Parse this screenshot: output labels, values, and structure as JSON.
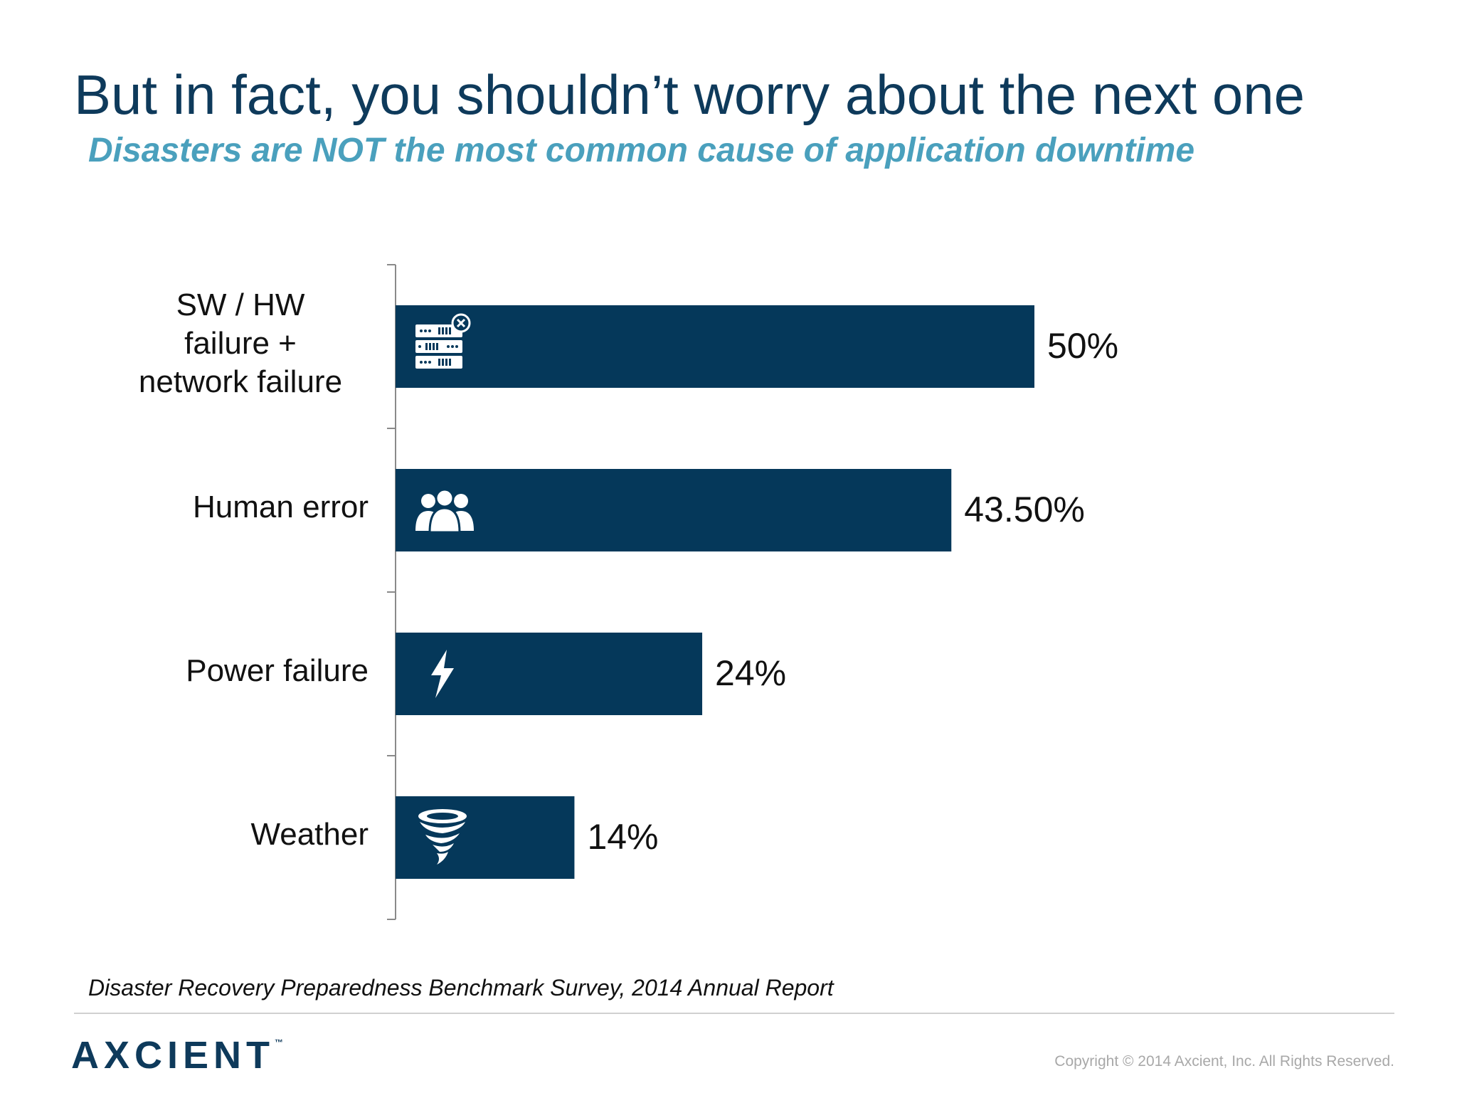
{
  "slide": {
    "title": "But in fact, you shouldn’t worry about the next one",
    "subtitle": "Disasters are NOT the most common cause of application downtime",
    "source": "Disaster Recovery Preparedness Benchmark Survey, 2014 Annual Report",
    "copyright": "Copyright © 2014 Axcient, Inc. All Rights Reserved.",
    "logo_text": "AXCIENT",
    "logo_tm": "™"
  },
  "chart_data": {
    "type": "bar",
    "orientation": "horizontal",
    "categories": [
      "SW / HW failure + network failure",
      "Human error",
      "Power failure",
      "Weather"
    ],
    "category_lines": [
      [
        "SW / HW",
        "failure +",
        "network failure"
      ],
      [
        "Human error"
      ],
      [
        "Power failure"
      ],
      [
        "Weather"
      ]
    ],
    "values": [
      50,
      43.5,
      24,
      14
    ],
    "value_labels": [
      "50%",
      "43.50%",
      "24%",
      "14%"
    ],
    "icons": [
      "server-error-icon",
      "people-icon",
      "lightning-icon",
      "tornado-icon"
    ],
    "xlim": [
      0,
      50
    ],
    "grid": false,
    "legend": "none",
    "bar_color": "#05385a"
  },
  "colors": {
    "title": "#0e3a5b",
    "subtitle": "#4aa0bd",
    "bar": "#05385a",
    "logo": "#0e3a5b"
  }
}
